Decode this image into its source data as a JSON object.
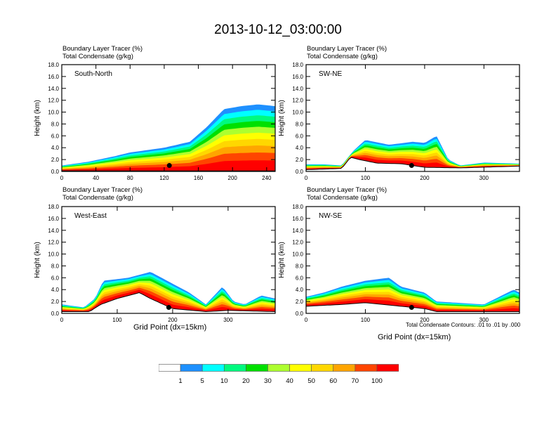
{
  "title": "2013-10-12_03:00:00",
  "subtitle_line1": "Boundary Layer Tracer   (%)",
  "subtitle_line2": "Total Condensate   (g/kg)",
  "xaxis_label": "Grid Point (dx=15km)",
  "contour_note": "Total Condensate Contours: .01 to .01 by .000",
  "chart_data": {
    "type": "heatmap",
    "title": "2013-10-12_03:00:00",
    "shaded_field": "Boundary Layer Tracer (%)",
    "contour_field": "Total Condensate (g/kg)",
    "contour_levels": [
      0.01
    ],
    "ylabel": "Height (km)",
    "xlabel": "Grid Point (dx=15km)",
    "yticks": [
      "0.0",
      "2.0",
      "4.0",
      "6.0",
      "8.0",
      "10.0",
      "12.0",
      "14.0",
      "16.0",
      "18.0"
    ],
    "ylim": [
      0,
      18
    ],
    "panels": [
      {
        "name": "South-North",
        "xlim": [
          0,
          250
        ],
        "xticks": [
          0,
          40,
          80,
          120,
          160,
          200,
          240
        ],
        "top_profile": [
          [
            0,
            1.0
          ],
          [
            30,
            1.6
          ],
          [
            60,
            2.5
          ],
          [
            80,
            3.2
          ],
          [
            120,
            4.0
          ],
          [
            150,
            5.0
          ],
          [
            170,
            7.5
          ],
          [
            190,
            10.5
          ],
          [
            210,
            11.0
          ],
          [
            230,
            11.3
          ],
          [
            250,
            11.0
          ]
        ],
        "terrain": [
          [
            0,
            0.1
          ],
          [
            250,
            0.1
          ]
        ],
        "marker": {
          "x": 126,
          "y": 1.0
        }
      },
      {
        "name": "SW-NE",
        "xlim": [
          0,
          360
        ],
        "xticks": [
          0,
          100,
          200,
          300
        ],
        "top_profile": [
          [
            0,
            1.2
          ],
          [
            30,
            1.2
          ],
          [
            60,
            1.0
          ],
          [
            80,
            3.5
          ],
          [
            100,
            5.3
          ],
          [
            140,
            4.5
          ],
          [
            180,
            5.0
          ],
          [
            200,
            4.8
          ],
          [
            220,
            6.0
          ],
          [
            240,
            2.0
          ],
          [
            260,
            1.0
          ],
          [
            300,
            1.5
          ],
          [
            360,
            1.3
          ]
        ],
        "terrain": [
          [
            0,
            0.3
          ],
          [
            60,
            0.5
          ],
          [
            75,
            2.4
          ],
          [
            90,
            2.0
          ],
          [
            120,
            1.4
          ],
          [
            160,
            1.3
          ],
          [
            200,
            0.7
          ],
          [
            260,
            0.6
          ],
          [
            360,
            0.9
          ]
        ],
        "marker": {
          "x": 178,
          "y": 1.0
        }
      },
      {
        "name": "West-East",
        "xlim": [
          0,
          385
        ],
        "xticks": [
          0,
          100,
          200,
          300
        ],
        "top_profile": [
          [
            0,
            1.5
          ],
          [
            40,
            1.0
          ],
          [
            60,
            2.5
          ],
          [
            75,
            5.5
          ],
          [
            120,
            6.0
          ],
          [
            160,
            7.0
          ],
          [
            200,
            5.0
          ],
          [
            230,
            3.5
          ],
          [
            260,
            1.5
          ],
          [
            290,
            4.5
          ],
          [
            310,
            2.0
          ],
          [
            330,
            1.5
          ],
          [
            360,
            3.0
          ],
          [
            385,
            2.5
          ]
        ],
        "terrain": [
          [
            0,
            0.3
          ],
          [
            50,
            0.3
          ],
          [
            70,
            1.5
          ],
          [
            100,
            2.5
          ],
          [
            140,
            3.5
          ],
          [
            160,
            2.5
          ],
          [
            200,
            0.8
          ],
          [
            260,
            0.3
          ],
          [
            300,
            0.5
          ],
          [
            385,
            0.3
          ]
        ],
        "marker": {
          "x": 193,
          "y": 1.0
        }
      },
      {
        "name": "NW-SE",
        "xlim": [
          0,
          360
        ],
        "xticks": [
          0,
          100,
          200,
          300
        ],
        "top_profile": [
          [
            0,
            2.8
          ],
          [
            30,
            3.5
          ],
          [
            60,
            4.5
          ],
          [
            100,
            5.5
          ],
          [
            140,
            6.0
          ],
          [
            160,
            4.5
          ],
          [
            200,
            3.5
          ],
          [
            220,
            2.0
          ],
          [
            300,
            1.5
          ],
          [
            330,
            3.0
          ],
          [
            350,
            4.0
          ],
          [
            360,
            3.5
          ]
        ],
        "terrain": [
          [
            0,
            1.2
          ],
          [
            60,
            1.5
          ],
          [
            100,
            1.8
          ],
          [
            130,
            1.5
          ],
          [
            200,
            0.8
          ],
          [
            220,
            0.3
          ],
          [
            360,
            0.3
          ]
        ],
        "marker": {
          "x": 178,
          "y": 1.0
        }
      }
    ],
    "colorbar": {
      "levels": [
        "1",
        "5",
        "10",
        "20",
        "30",
        "40",
        "50",
        "60",
        "70",
        "100"
      ],
      "colors": [
        "#ffffff",
        "#1e90ff",
        "#00ffff",
        "#00fa7f",
        "#00e000",
        "#adff2f",
        "#ffff00",
        "#ffd700",
        "#ffa500",
        "#ff4500",
        "#ff0000"
      ]
    }
  }
}
